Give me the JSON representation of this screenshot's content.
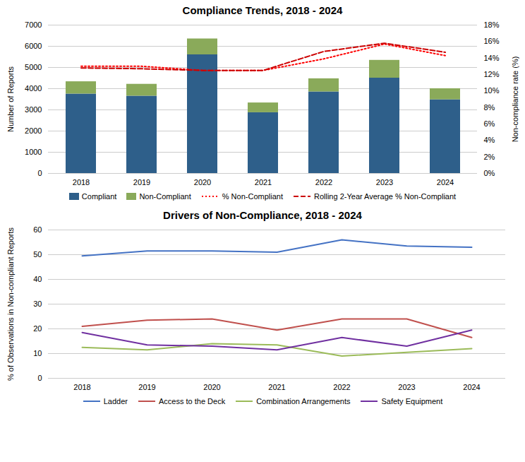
{
  "chart_data": [
    {
      "type": "bar",
      "stacked": true,
      "title": "Compliance Trends, 2018 - 2024",
      "categories": [
        "2018",
        "2019",
        "2020",
        "2021",
        "2022",
        "2023",
        "2024"
      ],
      "series": [
        {
          "name": "Compliant",
          "type": "bar",
          "color": "#2E5F8A",
          "values": [
            3750,
            3650,
            5600,
            2870,
            3850,
            4500,
            3480
          ]
        },
        {
          "name": "Non-Compliant",
          "type": "bar",
          "color": "#8AAA5A",
          "values": [
            580,
            560,
            750,
            460,
            620,
            840,
            520
          ]
        },
        {
          "name": "% Non-Compliant",
          "type": "line",
          "axis": "y2",
          "line_style": "dotted",
          "color": "#FF0000",
          "values": [
            13.0,
            13.0,
            12.5,
            12.5,
            13.9,
            15.7,
            14.3
          ]
        },
        {
          "name": "Rolling 2-Year Average % Non-Compliant",
          "type": "line",
          "axis": "y2",
          "line_style": "dashed",
          "color": "#CC0000",
          "values": [
            12.8,
            12.7,
            12.5,
            12.5,
            14.8,
            15.8,
            14.7
          ]
        }
      ],
      "ylabel": "Number of Reports",
      "y2label": "Non-compliance rate (%)",
      "ylim": [
        0,
        7000
      ],
      "yticks": [
        0,
        1000,
        2000,
        3000,
        4000,
        5000,
        6000,
        7000
      ],
      "y2lim": [
        0,
        18
      ],
      "y2ticks": [
        {
          "value": 0,
          "label": "0%"
        },
        {
          "value": 2,
          "label": "2%"
        },
        {
          "value": 4,
          "label": "4%"
        },
        {
          "value": 6,
          "label": "6%"
        },
        {
          "value": 8,
          "label": "8%"
        },
        {
          "value": 10,
          "label": "10%"
        },
        {
          "value": 12,
          "label": "12%"
        },
        {
          "value": 14,
          "label": "14%"
        },
        {
          "value": 16,
          "label": "16%"
        },
        {
          "value": 18,
          "label": "18%"
        }
      ],
      "grid": true,
      "legend": "bottom"
    },
    {
      "type": "line",
      "title": "Drivers of Non-Compliance, 2018 - 2024",
      "categories": [
        "2018",
        "2019",
        "2020",
        "2021",
        "2022",
        "2023",
        "2024"
      ],
      "series": [
        {
          "name": "Ladder",
          "color": "#4472C4",
          "values": [
            49.5,
            51.5,
            51.5,
            51.0,
            56.0,
            53.5,
            53.0
          ]
        },
        {
          "name": "Access to the Deck",
          "color": "#C0504D",
          "values": [
            21.0,
            23.5,
            24.0,
            19.5,
            24.0,
            24.0,
            16.5
          ]
        },
        {
          "name": "Combination Arrangements",
          "color": "#9BBB59",
          "values": [
            12.5,
            11.5,
            14.0,
            13.5,
            9.0,
            10.5,
            12.0
          ]
        },
        {
          "name": "Safety Equipment",
          "color": "#7030A0",
          "values": [
            18.5,
            13.5,
            13.0,
            11.5,
            16.5,
            13.0,
            19.5
          ]
        }
      ],
      "ylabel": "% of Observations in Non-compliant Reports",
      "ylim": [
        0,
        60
      ],
      "yticks": [
        0,
        10,
        20,
        30,
        40,
        50,
        60
      ],
      "grid": true,
      "legend": "bottom"
    }
  ]
}
